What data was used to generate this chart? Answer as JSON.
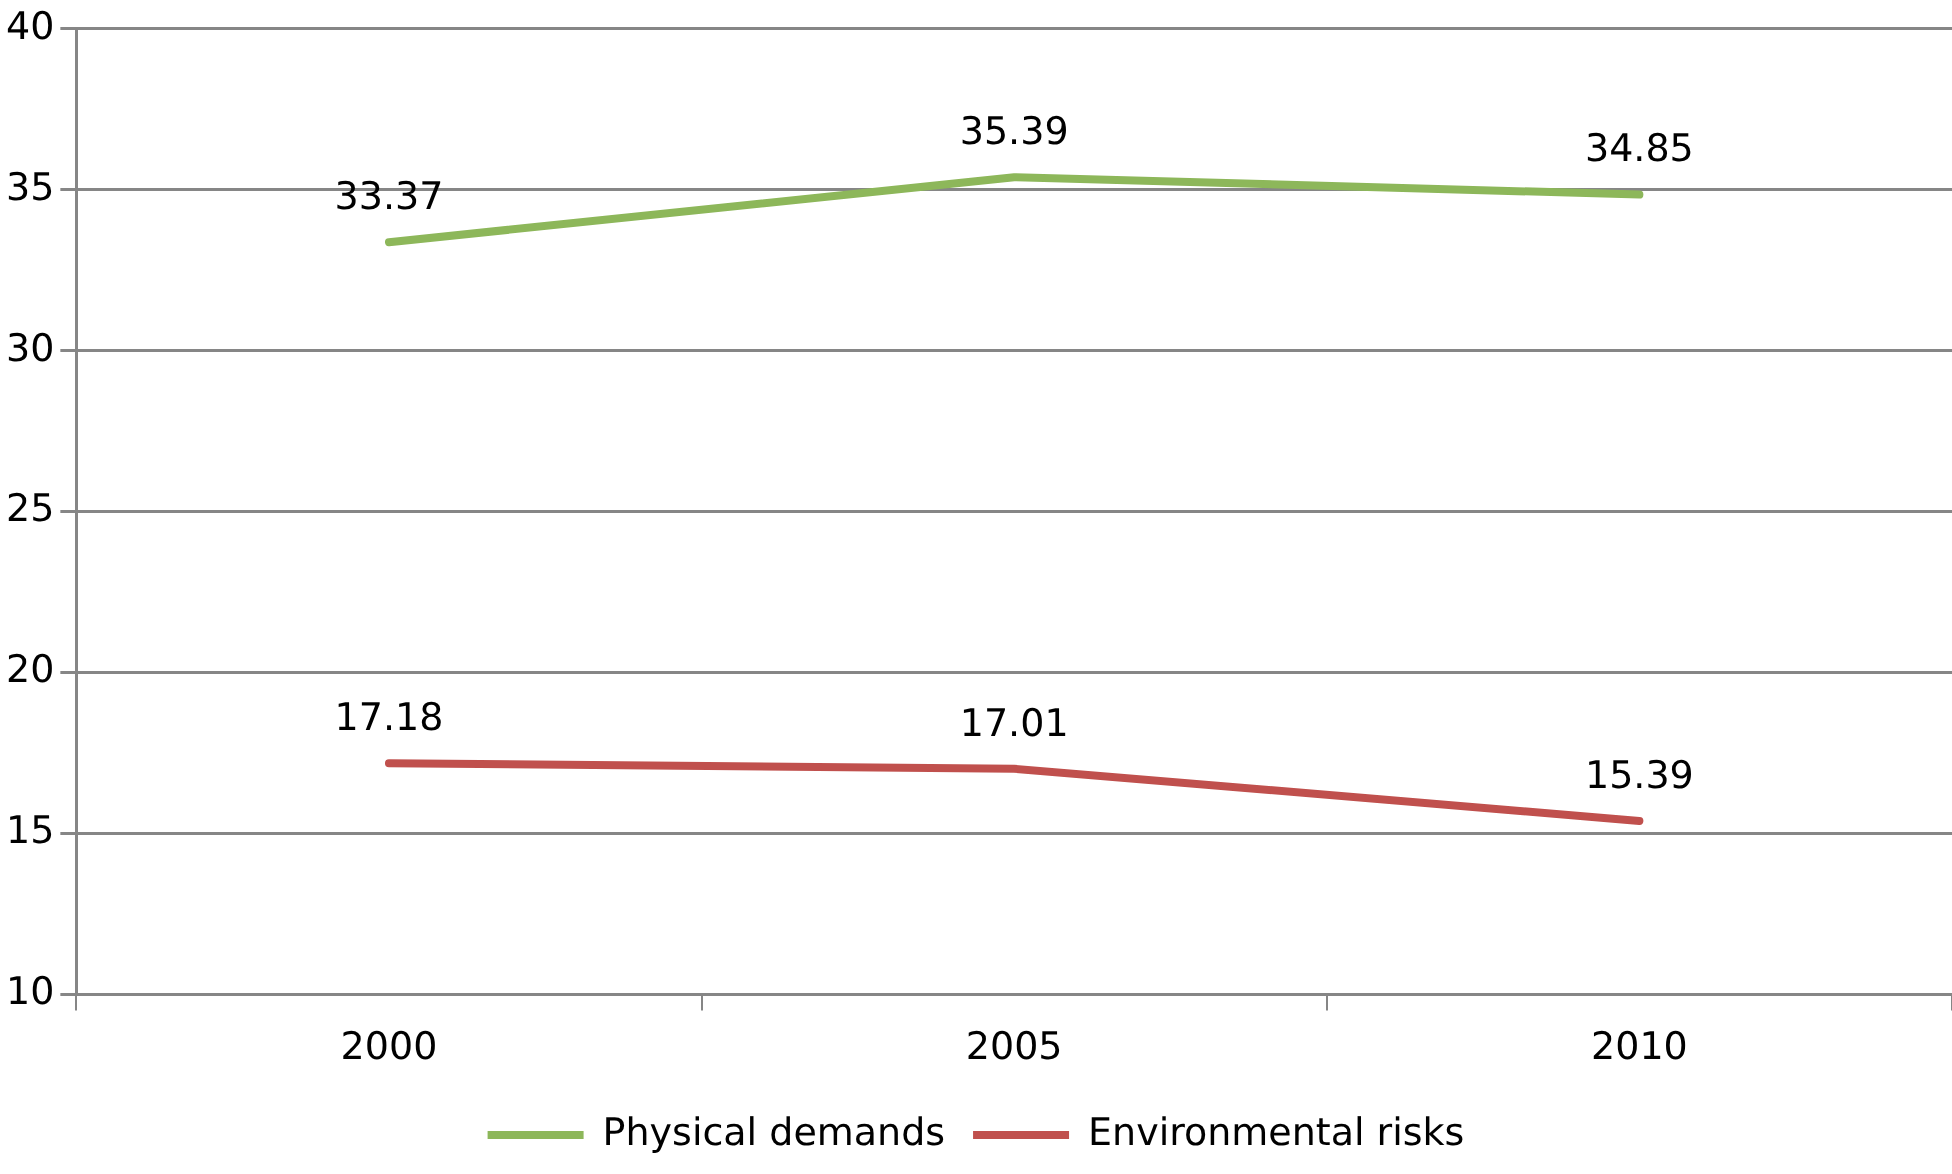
{
  "chart_data": {
    "type": "line",
    "categories": [
      "2000",
      "2005",
      "2010"
    ],
    "series": [
      {
        "name": "Physical demands",
        "color": "#8db75a",
        "values": [
          33.37,
          35.39,
          34.85
        ]
      },
      {
        "name": "Environmental risks",
        "color": "#c0504d",
        "values": [
          17.18,
          17.01,
          15.39
        ]
      }
    ],
    "ylim": [
      10,
      40
    ],
    "yticks": [
      10,
      15,
      20,
      25,
      30,
      35,
      40
    ],
    "grid": "y",
    "legend": "bottom",
    "data_labels": true,
    "marker": "none",
    "line_style": "solid"
  }
}
